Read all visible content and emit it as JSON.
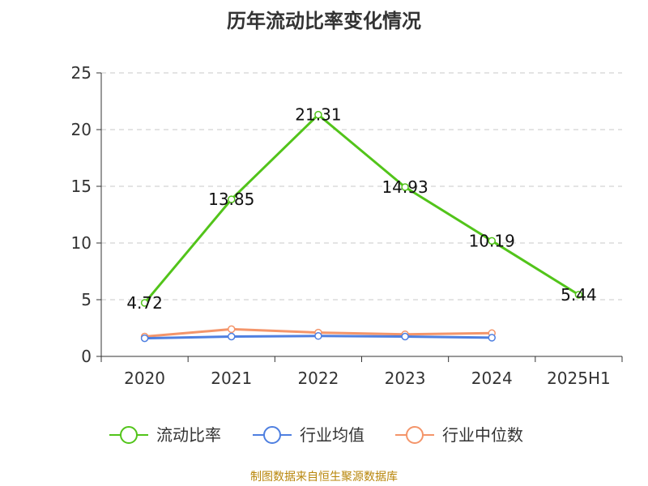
{
  "chart_data": {
    "type": "line",
    "title": "历年流动比率变化情况",
    "categories": [
      "2020",
      "2021",
      "2022",
      "2023",
      "2024",
      "2025H1"
    ],
    "ylim": [
      0,
      25
    ],
    "yticks": [
      0,
      5,
      10,
      15,
      20,
      25
    ],
    "grid": true,
    "legend_position": "bottom",
    "series": [
      {
        "name": "流动比率",
        "color": "#52c41a",
        "values": [
          4.72,
          13.85,
          21.31,
          14.93,
          10.19,
          5.44
        ],
        "show_labels": true
      },
      {
        "name": "行业均值",
        "color": "#4e7fe0",
        "values": [
          1.6,
          1.75,
          1.8,
          1.75,
          1.65,
          null
        ],
        "show_labels": false
      },
      {
        "name": "行业中位数",
        "color": "#f4956a",
        "values": [
          1.75,
          2.4,
          2.1,
          1.95,
          2.05,
          null
        ],
        "show_labels": false
      }
    ]
  },
  "source": "制图数据来自恒生聚源数据库"
}
